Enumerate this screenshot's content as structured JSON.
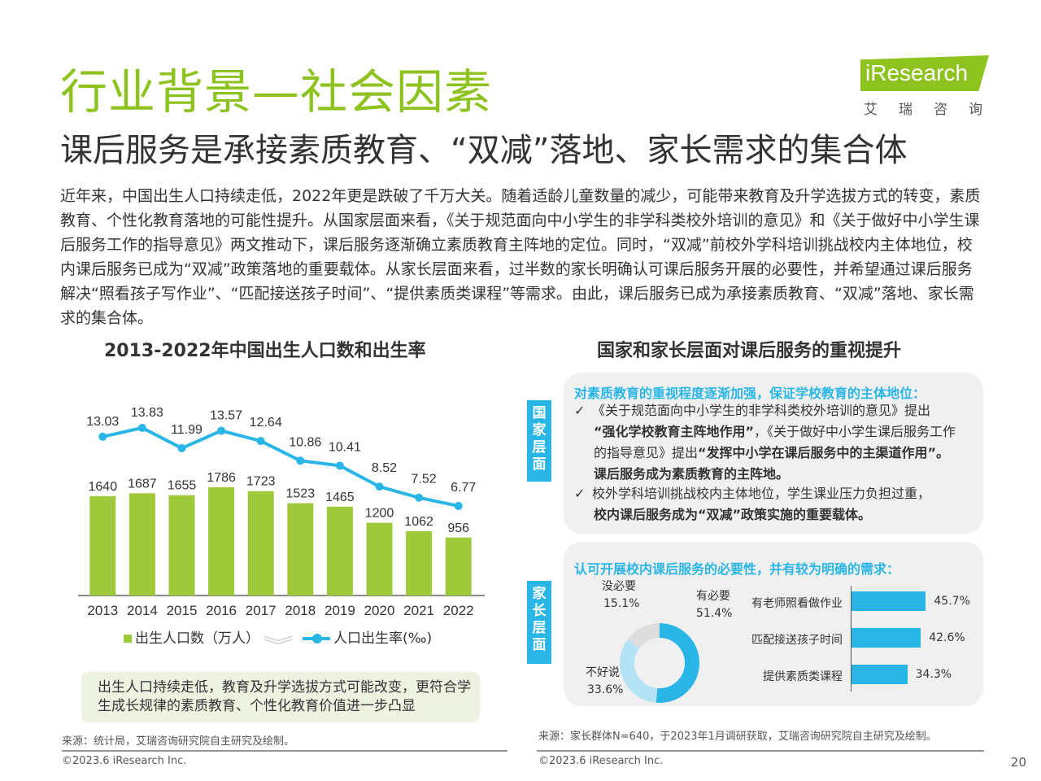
{
  "header": {
    "title": "行业背景—社会因素",
    "subtitle": "课后服务是承接素质教育、“双减”落地、家长需求的集合体",
    "logo_text": "iResearch",
    "logo_cn": "艾瑞咨询"
  },
  "intro": "近年来，中国出生人口持续走低，2022年更是跌破了千万大关。随着适龄儿童数量的减少，可能带来教育及升学选拔方式的转变，素质教育、个性化教育落地的可能性提升。从国家层面来看，《关于规范面向中小学生的非学科类校外培训的意见》和《关于做好中小学生课后服务工作的指导意见》两文推动下，课后服务逐渐确立素质教育主阵地的定位。同时，“双减”前校外学科培训挑战校内主体地位，校内课后服务已成为“双减”政策落地的重要载体。从家长层面来看，过半数的家长明确认可课后服务开展的必要性，并希望通过课后服务解决“照看孩子写作业”、“匹配接送孩子时间”、“提供素质类课程”等需求。由此，课后服务已成为承接素质教育、“双减”落地、家长需求的集合体。",
  "chart_data": [
    {
      "type": "bar",
      "title": "2013-2022年中国出生人口数和出生率",
      "categories": [
        "2013",
        "2014",
        "2015",
        "2016",
        "2017",
        "2018",
        "2019",
        "2020",
        "2021",
        "2022"
      ],
      "series": [
        {
          "name": "出生人口数（万人）",
          "type": "bar",
          "values": [
            1640,
            1687,
            1655,
            1786,
            1723,
            1523,
            1465,
            1200,
            1062,
            956
          ],
          "color": "#9ec93a"
        },
        {
          "name": "人口出生率(‰)",
          "type": "line",
          "values": [
            13.03,
            13.83,
            11.99,
            13.57,
            12.64,
            10.86,
            10.41,
            8.52,
            7.52,
            6.77
          ],
          "color": "#29b6e6"
        }
      ],
      "legend": "bottom"
    },
    {
      "type": "pie",
      "donut": true,
      "categories": [
        "有必要",
        "不好说",
        "没必要"
      ],
      "values": [
        51.4,
        33.6,
        15.1
      ],
      "value_labels": [
        "51.4%",
        "33.6%",
        "15.1%"
      ],
      "colors": [
        "#29b6e6",
        "#b3e3f5",
        "#dcdcdc"
      ]
    },
    {
      "type": "bar",
      "orientation": "horizontal",
      "categories": [
        "有老师照看做作业",
        "匹配接送孩子时间",
        "提供素质类课程"
      ],
      "values": [
        45.7,
        42.6,
        34.3
      ],
      "value_labels": [
        "45.7%",
        "42.6%",
        "34.3%"
      ],
      "color": "#29b6e6"
    }
  ],
  "left": {
    "chevrons": "︾",
    "note": "出生人口持续走低，教育及升学选拔方式可能改变，更符合学生成长规律的素质教育、个性化教育价值进一步凸显",
    "source": "来源：统计局，艾瑞咨询研究院自主研究及绘制。",
    "copyright": "©2023.6 iResearch Inc."
  },
  "right": {
    "title": "国家和家长层面对课后服务的重视提升",
    "tag_national": "国家层面",
    "tag_parent": "家长层面",
    "national_head": "对素质教育的重视程度逐渐加强，保证学校教育的主体地位：",
    "bullet1_a": "《关于规范面向中小学生的非学科类校外培训的意见》提出",
    "bullet1_b": "“强化学校教育主阵地作用”",
    "bullet1_c": "，《关于做好中小学生课后服务工作的指导意见》提出",
    "bullet1_d": "“发挥中小学在课后服务中的主渠道作用”。课后服务成为素质教育的主阵地。",
    "bullet2_a": "校外学科培训挑战校内主体地位，学生课业压力负担过重，",
    "bullet2_b": "校内课后服务成为“双减”政策实施的重要载体。",
    "check": "✓",
    "parent_head": "认可开展校内课后服务的必要性，并有较为明确的需求：",
    "source": "来源：家长群体N=640，于2023年1月调研获取，艾瑞咨询研究院自主研究及绘制。",
    "copyright": "©2023.6 iResearch Inc."
  },
  "page_number": "20"
}
